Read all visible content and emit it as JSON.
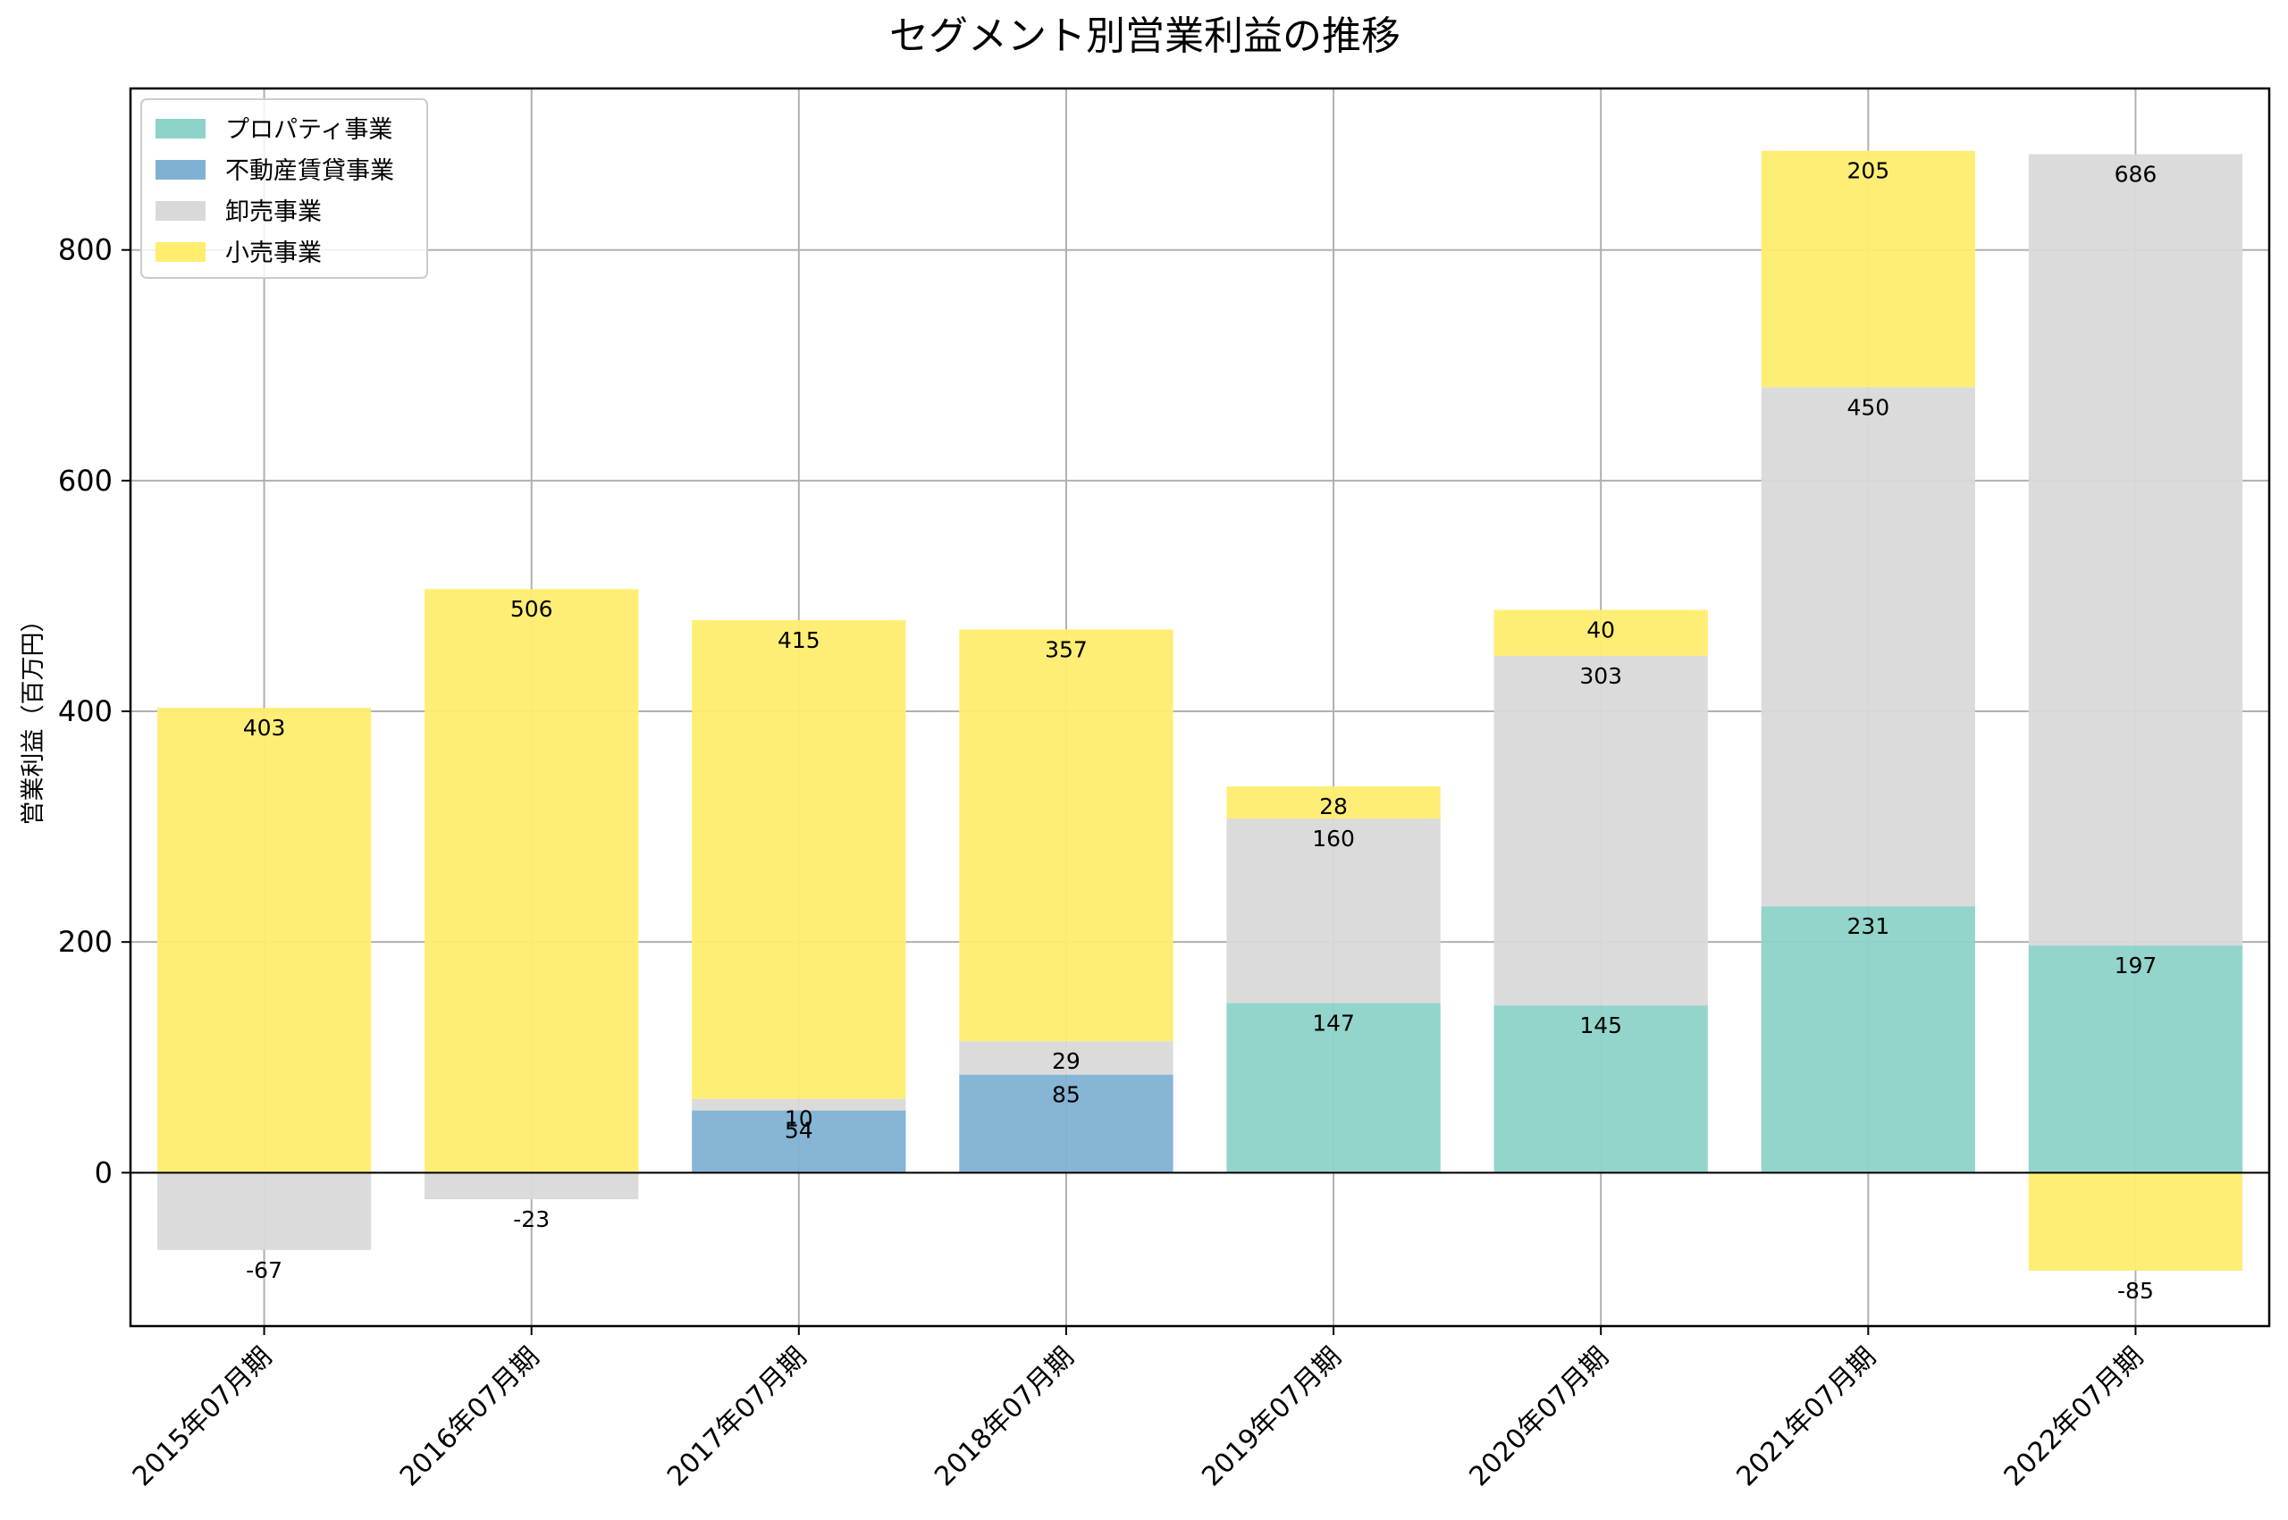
{
  "chart_data": {
    "type": "bar",
    "stacked": true,
    "title": "セグメント別営業利益の推移",
    "xlabel": "",
    "ylabel": "営業利益（百万円）",
    "ylim": [
      -133,
      940
    ],
    "yticks": [
      0,
      200,
      400,
      600,
      800
    ],
    "grid": true,
    "legend_position": "top-left",
    "categories": [
      "2015年07月期",
      "2016年07月期",
      "2017年07月期",
      "2018年07月期",
      "2019年07月期",
      "2020年07月期",
      "2021年07月期",
      "2022年07月期"
    ],
    "series": [
      {
        "name": "プロパティ事業",
        "color": "#8dd3c7",
        "values": [
          null,
          null,
          null,
          null,
          147,
          145,
          231,
          197
        ]
      },
      {
        "name": "不動産賃貸事業",
        "color": "#80b1d3",
        "values": [
          null,
          null,
          54,
          85,
          null,
          null,
          null,
          null
        ]
      },
      {
        "name": "卸売事業",
        "color": "#d9d9d9",
        "values": [
          -67,
          -23,
          10,
          29,
          160,
          303,
          450,
          686
        ]
      },
      {
        "name": "小売事業",
        "color": "#ffed6f",
        "values": [
          403,
          506,
          415,
          357,
          28,
          40,
          205,
          -85
        ]
      }
    ]
  }
}
